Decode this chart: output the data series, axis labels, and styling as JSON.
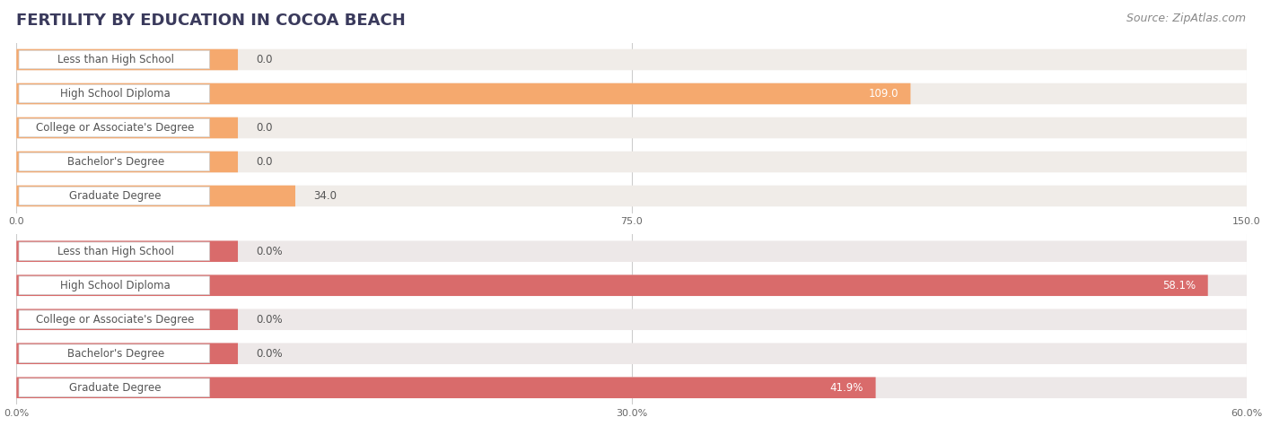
{
  "title": "FERTILITY BY EDUCATION IN COCOA BEACH",
  "source": "Source: ZipAtlas.com",
  "top_chart": {
    "categories": [
      "Less than High School",
      "High School Diploma",
      "College or Associate's Degree",
      "Bachelor's Degree",
      "Graduate Degree"
    ],
    "values": [
      0.0,
      109.0,
      0.0,
      0.0,
      34.0
    ],
    "bar_color": "#f5a96e",
    "bar_bg_color": "#f0ece8",
    "label_color": "#555555",
    "value_color": "#555555",
    "xlim": [
      0,
      150
    ],
    "xticks": [
      0.0,
      75.0,
      150.0
    ],
    "zero_bar_width": 0.18
  },
  "bottom_chart": {
    "categories": [
      "Less than High School",
      "High School Diploma",
      "College or Associate's Degree",
      "Bachelor's Degree",
      "Graduate Degree"
    ],
    "values": [
      0.0,
      58.1,
      0.0,
      0.0,
      41.9
    ],
    "bar_color": "#d96b6b",
    "bar_bg_color": "#ede8e8",
    "label_color": "#555555",
    "value_color": "#555555",
    "xlim": [
      0,
      60
    ],
    "xticks": [
      0.0,
      30.0,
      60.0
    ],
    "xtick_labels": [
      "0.0%",
      "30.0%",
      "60.0%"
    ],
    "zero_bar_width": 0.18
  },
  "bg_color": "#ffffff",
  "title_color": "#3a3a5c",
  "title_fontsize": 13,
  "source_fontsize": 9,
  "label_fontsize": 8.5,
  "value_fontsize": 8.5
}
